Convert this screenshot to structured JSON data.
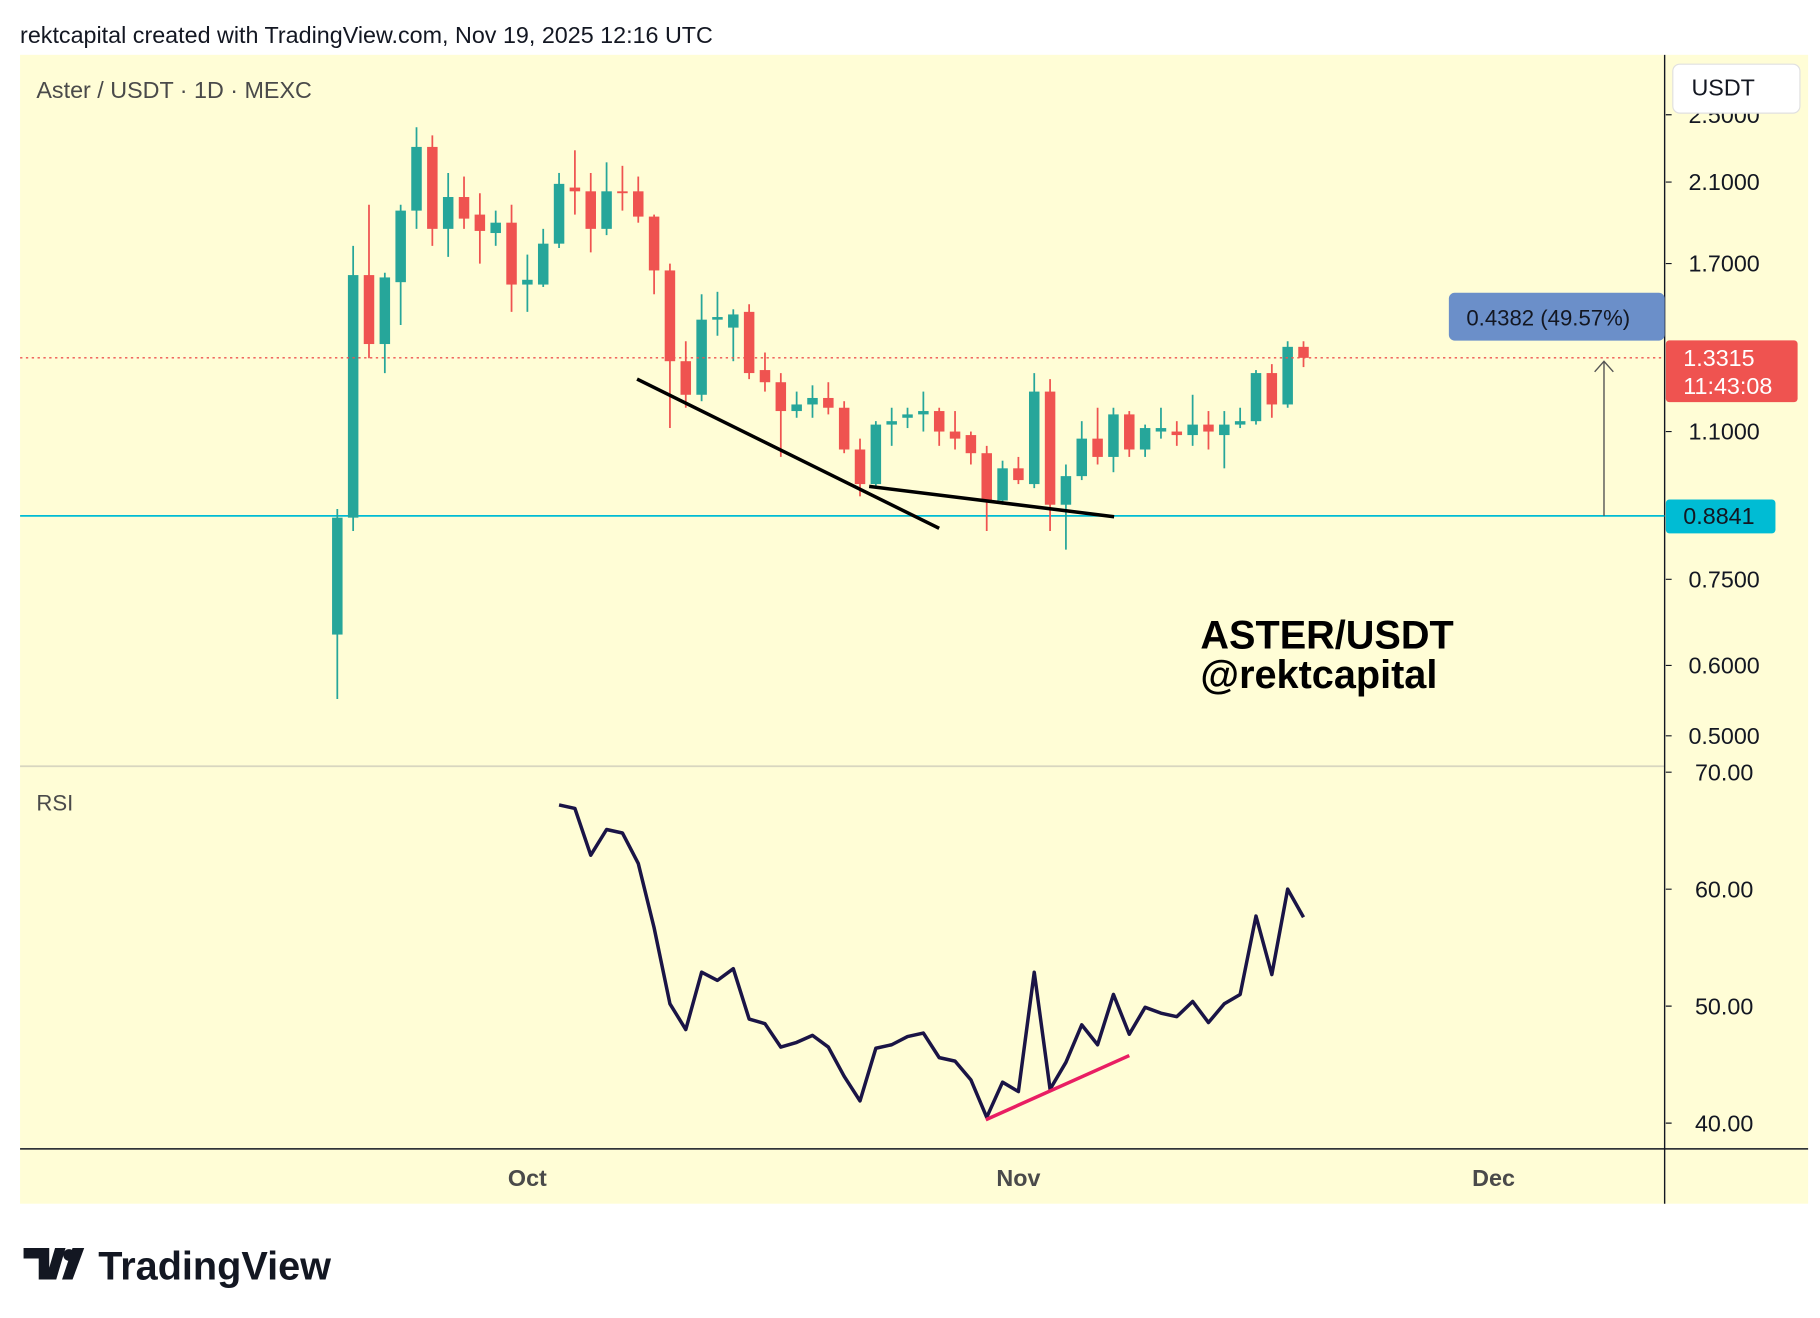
{
  "header": "rektcapital created with TradingView.com, Nov 19, 2025 12:16 UTC",
  "symbol": "Aster / USDT · 1D · MEXC",
  "currency": "USDT",
  "watermark": [
    "ASTER/USDT",
    "@rektcapital"
  ],
  "measure_label": "0.4382 (49.57%)",
  "countdown": "11:43:08",
  "support_level": 0.8841,
  "brand": "TradingView",
  "chart_data": [
    {
      "type": "candlestick",
      "up_color": "#26a69a",
      "down_color": "#ef5350",
      "log_scale": true,
      "categories": [
        null,
        null,
        null,
        null,
        null,
        null,
        null,
        null,
        null,
        null,
        null,
        null,
        "Oct",
        null,
        null,
        null,
        null,
        null,
        null,
        null,
        null,
        null,
        null,
        null,
        null,
        null,
        null,
        null,
        null,
        null,
        null,
        null,
        null,
        null,
        null,
        null,
        null,
        null,
        null,
        null,
        null,
        null,
        null,
        "Nov",
        null,
        null,
        null,
        null,
        null,
        null,
        null,
        null,
        null,
        null,
        null,
        null,
        null,
        null,
        null,
        null,
        null,
        null,
        null,
        null,
        null,
        null,
        null,
        null,
        null,
        null,
        null,
        null,
        null,
        "Dec"
      ],
      "open": [
        0.65,
        0.88,
        1.65,
        1.38,
        1.62,
        1.95,
        2.3,
        1.86,
        2.02,
        1.93,
        1.84,
        1.89,
        1.61,
        1.61,
        1.79,
        2.07,
        2.05,
        1.86,
        2.05,
        2.05,
        1.92,
        1.67,
        1.32,
        1.21,
        1.47,
        1.44,
        1.5,
        1.29,
        1.25,
        1.16,
        1.18,
        1.2,
        1.17,
        1.05,
        0.96,
        1.12,
        1.14,
        1.15,
        1.16,
        1.1,
        1.09,
        1.04,
        0.92,
        1.0,
        0.96,
        1.22,
        0.91,
        0.98,
        1.08,
        1.03,
        1.15,
        1.05,
        1.1,
        1.1,
        1.09,
        1.12,
        1.09,
        1.12,
        1.13,
        1.28,
        1.18,
        1.37,
        null,
        null,
        null,
        null,
        null,
        null,
        null,
        null,
        null,
        null,
        null,
        null
      ],
      "high": [
        0.9,
        1.78,
        1.98,
        1.66,
        1.98,
        2.42,
        2.37,
        2.15,
        2.13,
        2.04,
        1.95,
        1.98,
        1.74,
        1.86,
        2.15,
        2.28,
        2.15,
        2.21,
        2.19,
        2.13,
        1.93,
        1.7,
        1.39,
        1.57,
        1.58,
        1.51,
        1.53,
        1.35,
        1.28,
        1.22,
        1.24,
        1.25,
        1.19,
        1.08,
        1.13,
        1.17,
        1.17,
        1.22,
        1.17,
        1.16,
        1.1,
        1.06,
        1.02,
        1.03,
        1.28,
        1.26,
        1.01,
        1.13,
        1.17,
        1.17,
        1.16,
        1.12,
        1.17,
        1.13,
        1.21,
        1.16,
        1.16,
        1.17,
        1.29,
        1.31,
        1.39,
        1.39,
        null,
        null,
        null,
        null,
        null,
        null,
        null,
        null,
        null,
        null,
        null,
        null
      ],
      "low": [
        0.55,
        0.85,
        1.33,
        1.28,
        1.45,
        1.86,
        1.78,
        1.73,
        1.86,
        1.7,
        1.78,
        1.5,
        1.5,
        1.6,
        1.77,
        1.93,
        1.75,
        1.83,
        1.95,
        1.89,
        1.57,
        1.11,
        1.17,
        1.19,
        1.41,
        1.32,
        1.26,
        1.22,
        1.03,
        1.14,
        1.14,
        1.15,
        1.04,
        0.93,
        0.95,
        1.06,
        1.11,
        1.1,
        1.06,
        1.05,
        1.01,
        0.85,
        0.91,
        0.96,
        0.95,
        0.85,
        0.81,
        0.97,
        1.01,
        0.99,
        1.03,
        1.03,
        1.08,
        1.06,
        1.06,
        1.05,
        1.0,
        1.11,
        1.12,
        1.14,
        1.17,
        1.3,
        null,
        null,
        null,
        null,
        null,
        null,
        null,
        null,
        null,
        null,
        null,
        null
      ],
      "close": [
        0.88,
        1.65,
        1.38,
        1.64,
        1.95,
        2.3,
        1.86,
        2.02,
        1.91,
        1.85,
        1.89,
        1.61,
        1.63,
        1.79,
        2.09,
        2.05,
        1.86,
        2.05,
        2.04,
        1.92,
        1.67,
        1.32,
        1.21,
        1.47,
        1.48,
        1.49,
        1.28,
        1.25,
        1.16,
        1.18,
        1.2,
        1.17,
        1.05,
        0.96,
        1.12,
        1.13,
        1.15,
        1.16,
        1.1,
        1.08,
        1.04,
        0.92,
        1.0,
        0.97,
        1.22,
        0.91,
        0.98,
        1.08,
        1.03,
        1.15,
        1.05,
        1.11,
        1.11,
        1.09,
        1.12,
        1.1,
        1.12,
        1.13,
        1.28,
        1.18,
        1.37,
        1.3315,
        null,
        null,
        null,
        null,
        null,
        null,
        null,
        null,
        null,
        null,
        null,
        null
      ],
      "ylim": [
        0.462,
        2.92
      ],
      "yticks": [
        {
          "value": 0.5,
          "label": "0.5000"
        },
        {
          "value": 0.6,
          "label": "0.6000"
        },
        {
          "value": 0.75,
          "label": "0.7500"
        },
        {
          "value": 1.1,
          "label": "1.1000"
        },
        {
          "value": 1.7,
          "label": "1.7000"
        },
        {
          "value": 2.1,
          "label": "2.1000"
        },
        {
          "value": 2.5,
          "label": "2.5000"
        }
      ]
    },
    {
      "type": "line",
      "title": "RSI",
      "color": "#1a1446",
      "values": [
        null,
        null,
        null,
        null,
        null,
        null,
        null,
        null,
        null,
        null,
        null,
        null,
        null,
        null,
        67.2,
        66.9,
        62.9,
        65.1,
        64.8,
        62.2,
        56.7,
        50.2,
        48.0,
        52.9,
        52.2,
        53.2,
        48.9,
        48.5,
        46.5,
        46.9,
        47.5,
        46.5,
        44.0,
        41.9,
        46.4,
        46.7,
        47.4,
        47.7,
        45.6,
        45.3,
        43.7,
        40.5,
        43.5,
        42.7,
        52.9,
        42.9,
        45.2,
        48.4,
        46.7,
        51.0,
        47.6,
        49.9,
        49.4,
        49.1,
        50.4,
        48.6,
        50.2,
        51.0,
        57.7,
        52.7,
        60.0,
        57.6,
        null,
        null,
        null,
        null,
        null,
        null,
        null,
        null,
        null,
        null,
        null,
        null
      ],
      "ylim": [
        37.8,
        70.5
      ],
      "yticks": [
        {
          "value": 40,
          "label": "40.00"
        },
        {
          "value": 50,
          "label": "50.00"
        },
        {
          "value": 60,
          "label": "60.00"
        },
        {
          "value": 70,
          "label": "70.00"
        }
      ]
    }
  ]
}
